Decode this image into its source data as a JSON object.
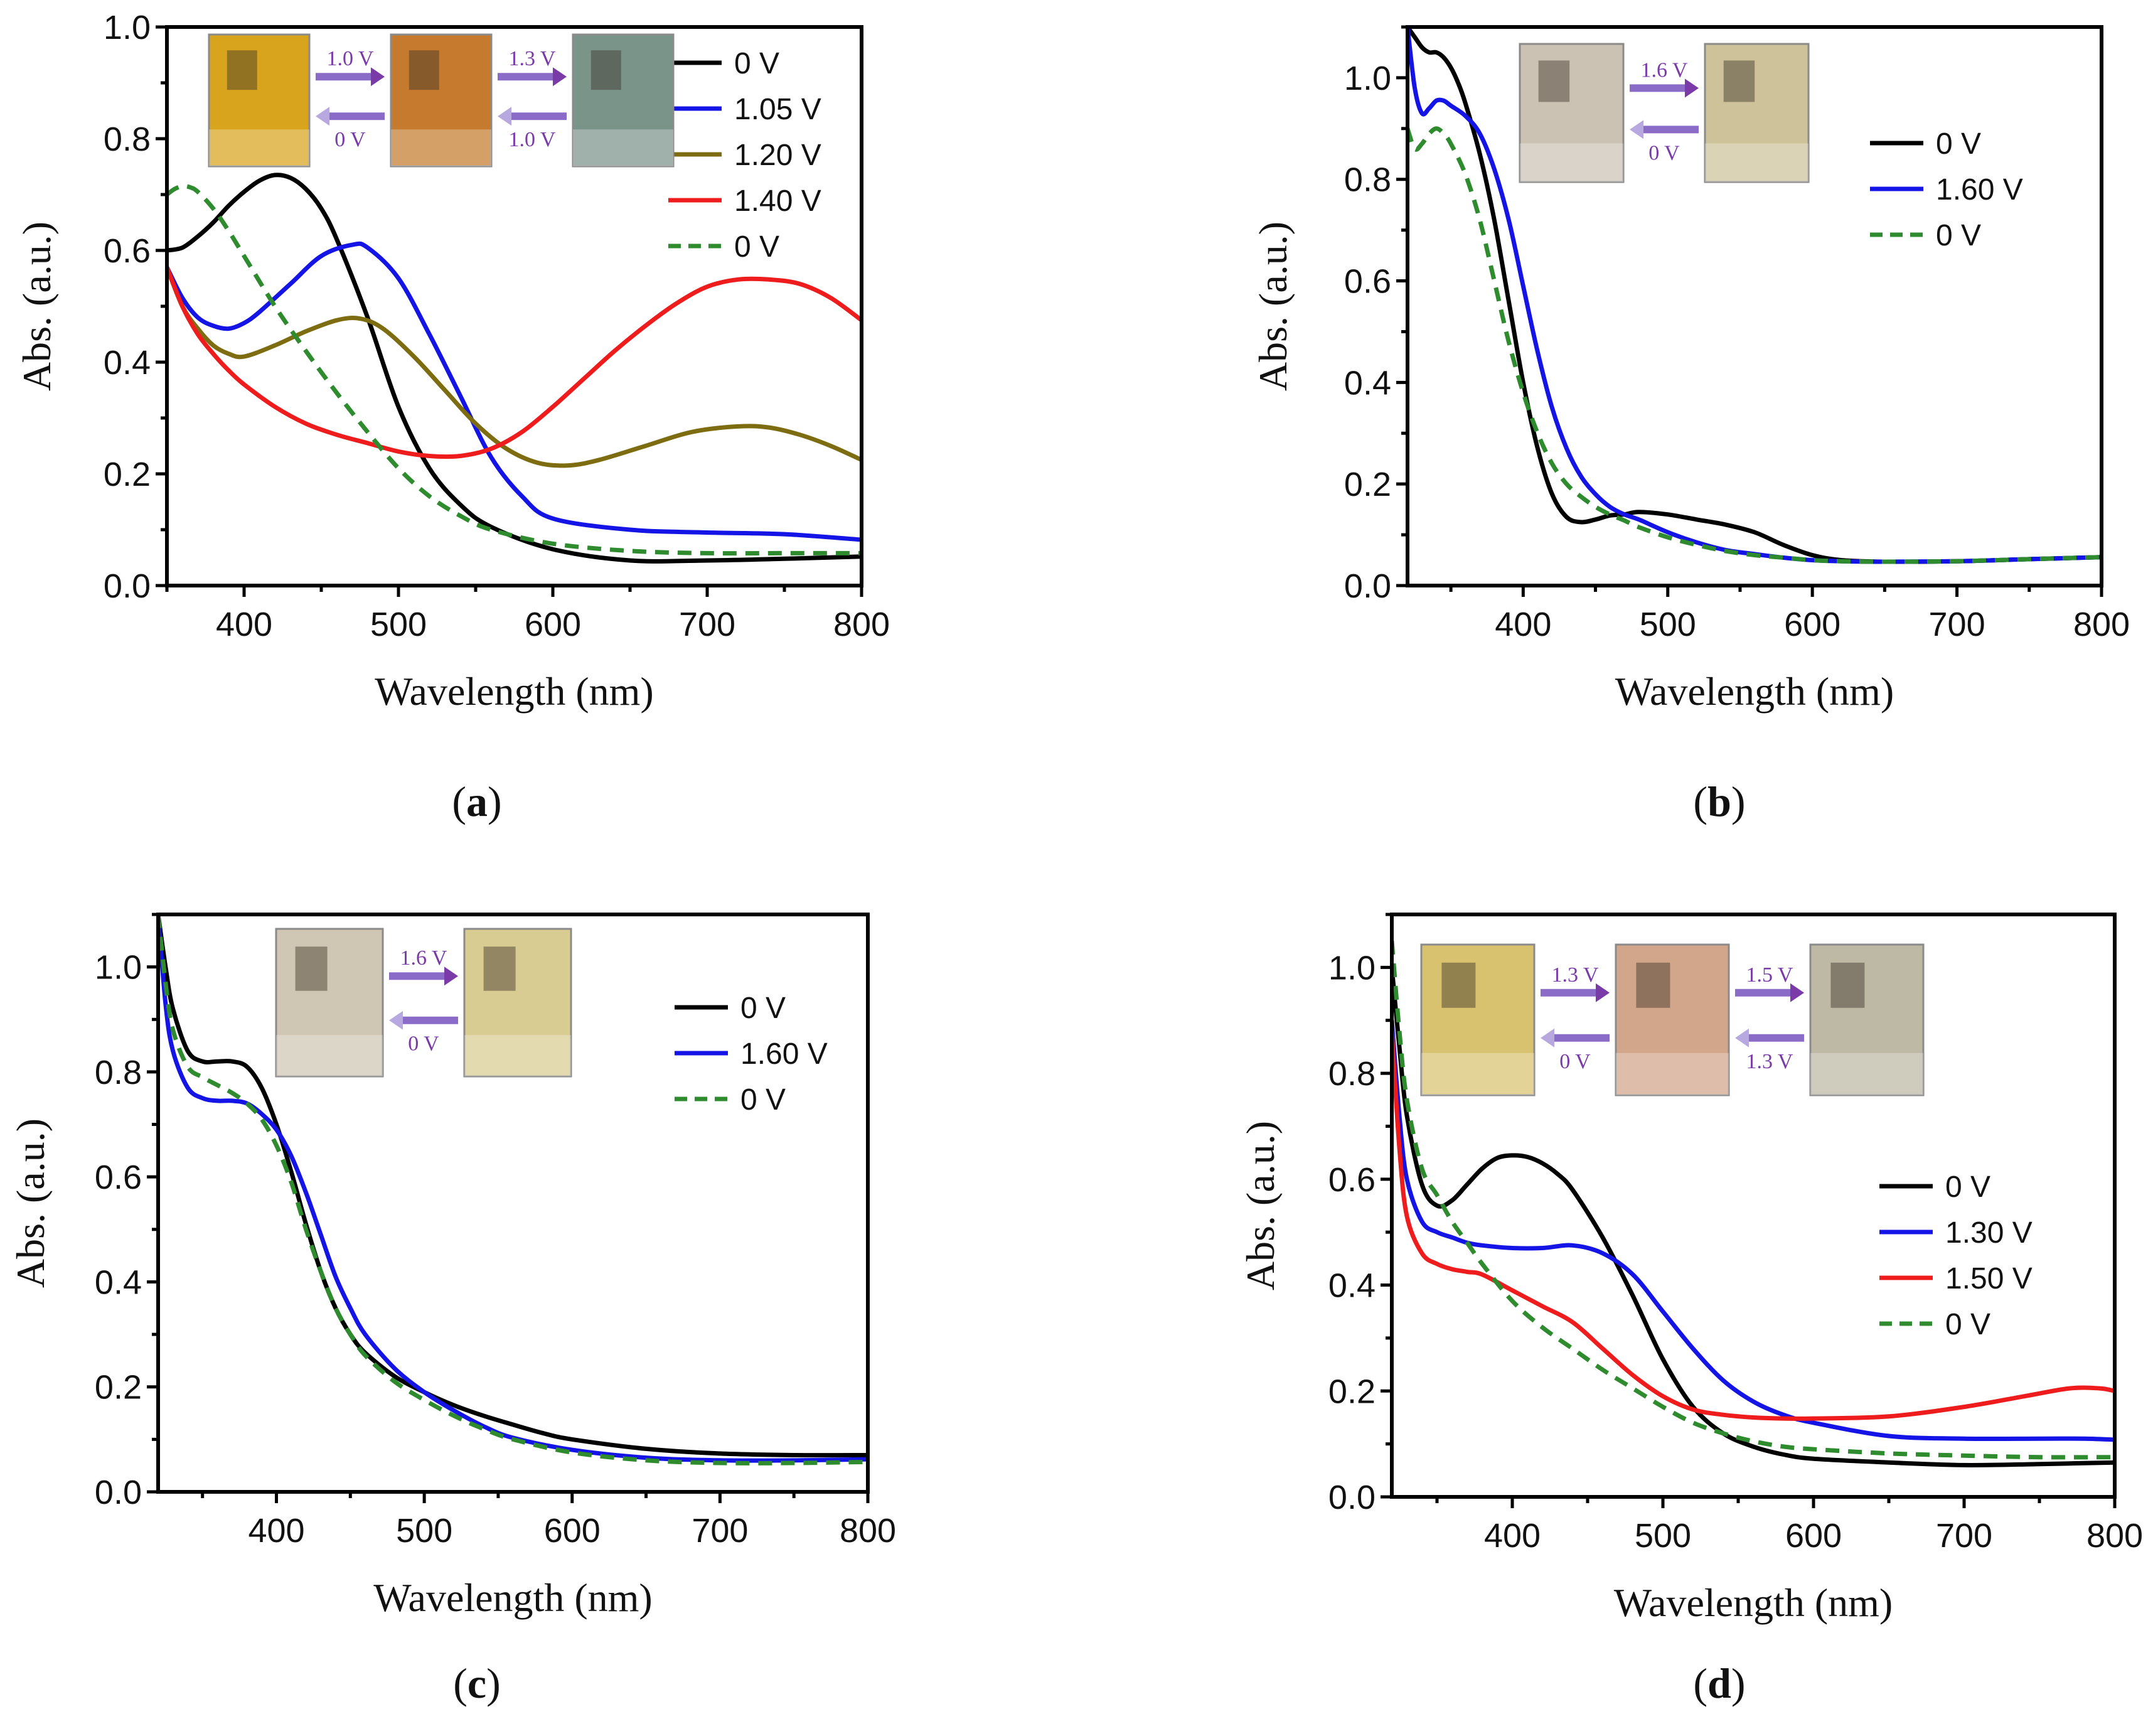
{
  "colors": {
    "black": "#000000",
    "blue": "#1414e6",
    "olive": "#7d6d10",
    "red": "#ee1c1c",
    "green": "#2e8b2e",
    "voltage_text": "#7a3aa8"
  },
  "chart_data": [
    {
      "id": "a",
      "type": "line",
      "caption": "a",
      "xlabel": "Wavelength (nm)",
      "ylabel": "Abs. (a.u.)",
      "xlim": [
        350,
        800
      ],
      "ylim": [
        0,
        1.0
      ],
      "xticks": [
        400,
        500,
        600,
        700,
        800
      ],
      "yticks": [
        "0.0",
        "0.2",
        "0.4",
        "0.6",
        "0.8",
        "1.0"
      ],
      "legend_position": "top-right",
      "inset": {
        "photo_tints": [
          "#d8a41e",
          "#c57a2e",
          "#7a948a"
        ],
        "arrows": [
          {
            "forward": "1.0 V",
            "back": "0 V"
          },
          {
            "forward": "1.3 V",
            "back": "1.0 V"
          }
        ]
      },
      "series": [
        {
          "name": "0 V",
          "color": "black",
          "dash": false,
          "x": [
            350,
            360,
            370,
            380,
            390,
            400,
            410,
            420,
            430,
            440,
            450,
            460,
            480,
            500,
            520,
            540,
            560,
            600,
            650,
            700,
            750,
            800
          ],
          "y": [
            0.6,
            0.605,
            0.625,
            0.65,
            0.68,
            0.705,
            0.725,
            0.735,
            0.73,
            0.71,
            0.675,
            0.62,
            0.48,
            0.32,
            0.21,
            0.145,
            0.105,
            0.065,
            0.045,
            0.045,
            0.048,
            0.052
          ]
        },
        {
          "name": "1.05 V",
          "color": "blue",
          "dash": false,
          "x": [
            350,
            360,
            370,
            380,
            390,
            400,
            410,
            430,
            450,
            470,
            480,
            500,
            520,
            540,
            560,
            580,
            600,
            650,
            700,
            750,
            800
          ],
          "y": [
            0.57,
            0.515,
            0.48,
            0.465,
            0.46,
            0.47,
            0.49,
            0.54,
            0.59,
            0.61,
            0.605,
            0.55,
            0.45,
            0.34,
            0.23,
            0.16,
            0.12,
            0.1,
            0.095,
            0.092,
            0.082
          ]
        },
        {
          "name": "1.20 V",
          "color": "olive",
          "dash": false,
          "x": [
            350,
            360,
            370,
            380,
            390,
            400,
            420,
            440,
            460,
            475,
            490,
            510,
            530,
            550,
            570,
            590,
            610,
            630,
            660,
            690,
            720,
            740,
            760,
            780,
            800
          ],
          "y": [
            0.57,
            0.5,
            0.46,
            0.43,
            0.415,
            0.41,
            0.43,
            0.455,
            0.475,
            0.478,
            0.46,
            0.41,
            0.35,
            0.29,
            0.245,
            0.22,
            0.215,
            0.225,
            0.25,
            0.275,
            0.285,
            0.283,
            0.27,
            0.25,
            0.225
          ]
        },
        {
          "name": "1.40 V",
          "color": "red",
          "dash": false,
          "x": [
            350,
            360,
            370,
            380,
            390,
            400,
            420,
            440,
            460,
            480,
            500,
            520,
            540,
            560,
            580,
            600,
            620,
            640,
            660,
            680,
            700,
            720,
            740,
            760,
            780,
            800
          ],
          "y": [
            0.57,
            0.5,
            0.45,
            0.415,
            0.385,
            0.36,
            0.32,
            0.29,
            0.27,
            0.255,
            0.24,
            0.232,
            0.232,
            0.245,
            0.275,
            0.32,
            0.37,
            0.42,
            0.465,
            0.505,
            0.535,
            0.548,
            0.548,
            0.54,
            0.515,
            0.475
          ]
        },
        {
          "name": "0 V",
          "color": "green",
          "dash": true,
          "x": [
            350,
            355,
            360,
            365,
            370,
            380,
            390,
            400,
            420,
            440,
            460,
            480,
            500,
            520,
            540,
            560,
            600,
            650,
            700,
            750,
            800
          ],
          "y": [
            0.7,
            0.71,
            0.715,
            0.713,
            0.705,
            0.675,
            0.635,
            0.59,
            0.5,
            0.42,
            0.345,
            0.275,
            0.21,
            0.16,
            0.125,
            0.1,
            0.075,
            0.062,
            0.058,
            0.058,
            0.058
          ]
        }
      ]
    },
    {
      "id": "b",
      "type": "line",
      "caption": "b",
      "xlabel": "Wavelength (nm)",
      "ylabel": "Abs. (a.u.)",
      "xlim": [
        320,
        800
      ],
      "ylim": [
        0,
        1.1
      ],
      "xticks": [
        400,
        500,
        600,
        700,
        800
      ],
      "yticks": [
        "0.0",
        "0.2",
        "0.4",
        "0.6",
        "0.8",
        "1.0"
      ],
      "legend_position": "top-right",
      "inset": {
        "photo_tints": [
          "#ccc2b4",
          "#cdc29a"
        ],
        "arrows": [
          {
            "forward": "1.6 V",
            "back": "0 V"
          }
        ]
      },
      "series": [
        {
          "name": "0 V",
          "color": "black",
          "dash": false,
          "x": [
            320,
            325,
            330,
            335,
            340,
            345,
            350,
            355,
            360,
            370,
            380,
            390,
            400,
            410,
            420,
            430,
            440,
            450,
            460,
            470,
            480,
            500,
            520,
            540,
            560,
            580,
            600,
            620,
            650,
            700,
            750,
            800
          ],
          "y": [
            1.1,
            1.08,
            1.06,
            1.05,
            1.05,
            1.04,
            1.02,
            0.99,
            0.95,
            0.85,
            0.72,
            0.56,
            0.4,
            0.27,
            0.18,
            0.135,
            0.125,
            0.13,
            0.138,
            0.14,
            0.145,
            0.14,
            0.13,
            0.12,
            0.105,
            0.08,
            0.06,
            0.05,
            0.047,
            0.048,
            0.052,
            0.056
          ]
        },
        {
          "name": "1.60 V",
          "color": "blue",
          "dash": false,
          "x": [
            320,
            325,
            330,
            335,
            340,
            345,
            350,
            360,
            370,
            380,
            390,
            400,
            410,
            420,
            430,
            440,
            450,
            460,
            470,
            480,
            500,
            520,
            540,
            560,
            580,
            600,
            620,
            650,
            700,
            750,
            800
          ],
          "y": [
            1.1,
            0.98,
            0.93,
            0.94,
            0.955,
            0.955,
            0.945,
            0.925,
            0.89,
            0.82,
            0.72,
            0.59,
            0.46,
            0.35,
            0.27,
            0.215,
            0.18,
            0.155,
            0.14,
            0.13,
            0.105,
            0.085,
            0.07,
            0.062,
            0.055,
            0.05,
            0.048,
            0.047,
            0.048,
            0.052,
            0.056
          ]
        },
        {
          "name": "0 V",
          "color": "green",
          "dash": true,
          "x": [
            320,
            325,
            330,
            335,
            340,
            345,
            350,
            360,
            370,
            380,
            390,
            400,
            410,
            420,
            430,
            440,
            450,
            460,
            470,
            480,
            500,
            520,
            540,
            560,
            580,
            600,
            620,
            650,
            700,
            750,
            800
          ],
          "y": [
            0.9,
            0.86,
            0.87,
            0.89,
            0.9,
            0.89,
            0.87,
            0.81,
            0.72,
            0.6,
            0.48,
            0.38,
            0.3,
            0.24,
            0.2,
            0.175,
            0.155,
            0.14,
            0.128,
            0.115,
            0.095,
            0.08,
            0.068,
            0.06,
            0.055,
            0.05,
            0.048,
            0.047,
            0.048,
            0.052,
            0.056
          ]
        }
      ]
    },
    {
      "id": "c",
      "type": "line",
      "caption": "c",
      "xlabel": "Wavelength (nm)",
      "ylabel": "Abs. (a.u.)",
      "xlim": [
        320,
        800
      ],
      "ylim": [
        0,
        1.1
      ],
      "xticks": [
        400,
        500,
        600,
        700,
        800
      ],
      "yticks": [
        "0.0",
        "0.2",
        "0.4",
        "0.6",
        "0.8",
        "1.0"
      ],
      "legend_position": "top-right",
      "inset": {
        "photo_tints": [
          "#cfc7b3",
          "#d9cc92"
        ],
        "arrows": [
          {
            "forward": "1.6 V",
            "back": "0 V"
          }
        ]
      },
      "series": [
        {
          "name": "0 V",
          "color": "black",
          "dash": false,
          "x": [
            320,
            325,
            330,
            340,
            350,
            360,
            370,
            380,
            390,
            400,
            410,
            420,
            430,
            440,
            450,
            460,
            480,
            500,
            520,
            540,
            560,
            580,
            600,
            650,
            700,
            750,
            800
          ],
          "y": [
            1.1,
            1.0,
            0.92,
            0.84,
            0.82,
            0.82,
            0.82,
            0.81,
            0.77,
            0.7,
            0.61,
            0.51,
            0.42,
            0.35,
            0.3,
            0.265,
            0.22,
            0.19,
            0.165,
            0.145,
            0.128,
            0.112,
            0.1,
            0.082,
            0.073,
            0.07,
            0.07
          ]
        },
        {
          "name": "1.60 V",
          "color": "blue",
          "dash": false,
          "x": [
            320,
            325,
            330,
            340,
            350,
            360,
            370,
            380,
            390,
            400,
            410,
            420,
            430,
            440,
            450,
            460,
            480,
            500,
            520,
            540,
            560,
            600,
            650,
            700,
            750,
            800
          ],
          "y": [
            1.1,
            0.93,
            0.84,
            0.77,
            0.75,
            0.745,
            0.745,
            0.74,
            0.72,
            0.69,
            0.64,
            0.57,
            0.49,
            0.41,
            0.35,
            0.3,
            0.235,
            0.19,
            0.155,
            0.125,
            0.103,
            0.08,
            0.065,
            0.06,
            0.06,
            0.062
          ]
        },
        {
          "name": "0 V",
          "color": "green",
          "dash": true,
          "x": [
            320,
            325,
            330,
            340,
            350,
            360,
            370,
            380,
            390,
            400,
            410,
            420,
            430,
            440,
            450,
            460,
            480,
            500,
            520,
            540,
            560,
            600,
            650,
            700,
            750,
            800
          ],
          "y": [
            1.1,
            0.97,
            0.88,
            0.81,
            0.79,
            0.775,
            0.76,
            0.74,
            0.71,
            0.66,
            0.59,
            0.5,
            0.42,
            0.35,
            0.3,
            0.26,
            0.21,
            0.175,
            0.145,
            0.12,
            0.1,
            0.075,
            0.06,
            0.055,
            0.055,
            0.057
          ]
        }
      ]
    },
    {
      "id": "d",
      "type": "line",
      "caption": "d",
      "xlabel": "Wavelength (nm)",
      "ylabel": "Abs. (a.u.)",
      "xlim": [
        320,
        800
      ],
      "ylim": [
        0,
        1.1
      ],
      "xticks": [
        400,
        500,
        600,
        700,
        800
      ],
      "yticks": [
        "0.0",
        "0.2",
        "0.4",
        "0.6",
        "0.8",
        "1.0"
      ],
      "legend_position": "middle-right",
      "inset": {
        "photo_tints": [
          "#d8c270",
          "#d2a68a",
          "#bdb9a5"
        ],
        "arrows": [
          {
            "forward": "1.3 V",
            "back": "0 V"
          },
          {
            "forward": "1.5 V",
            "back": "1.3 V"
          }
        ]
      },
      "series": [
        {
          "name": "0 V",
          "color": "black",
          "dash": false,
          "x": [
            320,
            325,
            330,
            340,
            350,
            360,
            370,
            380,
            390,
            400,
            410,
            420,
            430,
            440,
            460,
            480,
            500,
            520,
            540,
            560,
            580,
            600,
            650,
            700,
            750,
            800
          ],
          "y": [
            1.0,
            0.85,
            0.72,
            0.59,
            0.55,
            0.56,
            0.59,
            0.62,
            0.64,
            0.645,
            0.642,
            0.63,
            0.61,
            0.58,
            0.49,
            0.38,
            0.26,
            0.17,
            0.12,
            0.095,
            0.08,
            0.072,
            0.065,
            0.06,
            0.062,
            0.065
          ]
        },
        {
          "name": "1.30 V",
          "color": "blue",
          "dash": false,
          "x": [
            320,
            325,
            330,
            340,
            350,
            360,
            370,
            380,
            400,
            420,
            440,
            460,
            480,
            500,
            520,
            540,
            560,
            580,
            600,
            650,
            700,
            750,
            780,
            800
          ],
          "y": [
            0.9,
            0.72,
            0.6,
            0.52,
            0.5,
            0.49,
            0.48,
            0.475,
            0.47,
            0.47,
            0.475,
            0.46,
            0.42,
            0.35,
            0.28,
            0.22,
            0.18,
            0.155,
            0.14,
            0.115,
            0.11,
            0.11,
            0.11,
            0.108
          ]
        },
        {
          "name": "1.50 V",
          "color": "red",
          "dash": false,
          "x": [
            320,
            325,
            330,
            340,
            350,
            360,
            370,
            380,
            400,
            420,
            440,
            460,
            480,
            500,
            520,
            540,
            560,
            580,
            600,
            650,
            700,
            740,
            770,
            790,
            800
          ],
          "y": [
            0.88,
            0.66,
            0.53,
            0.46,
            0.44,
            0.43,
            0.425,
            0.42,
            0.39,
            0.36,
            0.33,
            0.28,
            0.23,
            0.19,
            0.165,
            0.155,
            0.15,
            0.148,
            0.148,
            0.152,
            0.17,
            0.19,
            0.205,
            0.205,
            0.2
          ]
        },
        {
          "name": "0 V",
          "color": "green",
          "dash": true,
          "x": [
            320,
            325,
            330,
            340,
            350,
            360,
            370,
            380,
            400,
            420,
            440,
            460,
            480,
            500,
            520,
            540,
            560,
            580,
            600,
            650,
            700,
            750,
            800
          ],
          "y": [
            1.05,
            0.88,
            0.75,
            0.62,
            0.57,
            0.52,
            0.48,
            0.44,
            0.37,
            0.32,
            0.28,
            0.24,
            0.205,
            0.17,
            0.14,
            0.12,
            0.105,
            0.095,
            0.09,
            0.082,
            0.078,
            0.075,
            0.075
          ]
        }
      ]
    }
  ]
}
